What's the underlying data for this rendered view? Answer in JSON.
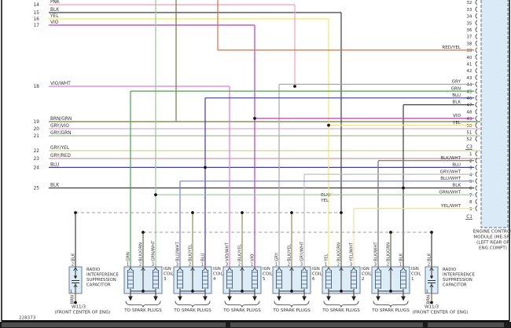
{
  "diagram_id": "228373",
  "colors": {
    "PNK": "#ef9ebf",
    "BLK": "#3c3c3c",
    "YEL": "#f0ea5e",
    "VIO": "#c238c2",
    "VIO_WHT": "#df77df",
    "BRN_GRN": "#6d7c3c",
    "GRY_VIO": "#dcaacc",
    "GRY_GRN": "#a9bf9b",
    "GRY_YEL": "#d2d296",
    "GRY_RED": "#d29c9c",
    "BLU": "#3c3ca5",
    "RED_YEL": "#d4733c",
    "GRY": "#ababab",
    "GRN": "#4aa34a",
    "GRN_WHT": "#93cb93",
    "BLU_WHT": "#7d7dcb",
    "BLK_WHT": "#707070",
    "BLK_GRN": "#5d6e4d",
    "BLK_YEL": "#8f8f50",
    "YEL_WHT": "#e6e69c",
    "BRN": "#8f5c2d",
    "GRY_WHT": "#c0c0c0",
    "bus": "#9c9c9c",
    "ecm_fill": "#daeaf7",
    "coil_fill": "#ddedf8",
    "box_border": "#5f6f8a",
    "text": "#333333"
  },
  "left_rows": [
    {
      "pin": "14",
      "label": "PNK"
    },
    {
      "pin": "15",
      "label": "BLK"
    },
    {
      "pin": "16",
      "label": "YEL"
    },
    {
      "pin": "17",
      "label": "VIO"
    },
    {
      "pin": "18",
      "label": "VIO/WHT"
    },
    {
      "pin": "19",
      "label": "BRN/GRN"
    },
    {
      "pin": "20",
      "label": "GRY/VIO"
    },
    {
      "pin": "21",
      "label": "GRY/GRN"
    },
    {
      "pin": "22",
      "label": "GRY/YEL"
    },
    {
      "pin": "23",
      "label": "GRY/RED"
    },
    {
      "pin": "24",
      "label": "BLU"
    },
    {
      "pin": "25",
      "label": "BLK"
    }
  ],
  "ecm": {
    "caption": [
      "ENGINE CONTROL",
      "MODULE (ME-SFI)",
      "(LEFT REAR OF",
      "ENG COMPT)"
    ],
    "upper_connector": "C3",
    "lower_connector": "C1",
    "upper_pins": [
      {
        "num": "32"
      },
      {
        "num": "33"
      },
      {
        "num": "34"
      },
      {
        "num": "35"
      },
      {
        "num": "36"
      },
      {
        "num": "37"
      },
      {
        "num": "38"
      },
      {
        "num": "39",
        "wire": "RED/YEL"
      },
      {
        "num": "40"
      },
      {
        "num": "41"
      },
      {
        "num": "42"
      },
      {
        "num": "43"
      },
      {
        "num": "44",
        "wire": "GRY"
      },
      {
        "num": "45",
        "wire": "GRN"
      },
      {
        "num": "46",
        "wire": "BLU"
      },
      {
        "num": "47",
        "wire": "BLK"
      },
      {
        "num": "48"
      },
      {
        "num": "49",
        "wire": "VIO"
      },
      {
        "num": "50",
        "wire": "YEL"
      },
      {
        "num": "51"
      },
      {
        "num": "52"
      }
    ],
    "lower_pins": [
      {
        "num": "1"
      },
      {
        "num": "2",
        "wire": "BLK/WHT"
      },
      {
        "num": "3",
        "wire": "BLU"
      },
      {
        "num": "4",
        "wire": "GRY/WHT"
      },
      {
        "num": "5",
        "wire": "BLU/WHT"
      },
      {
        "num": "6",
        "wire": "BLK"
      },
      {
        "num": "7",
        "wire": "GRN/WHT"
      },
      {
        "num": "8"
      },
      {
        "num": "9",
        "wire": "YEL/WHT"
      }
    ]
  },
  "coils": [
    {
      "label": [
        "IGN",
        "COIL",
        "3"
      ],
      "spark": "TO SPARK PLUGS",
      "terminals": [
        {
          "n": "1",
          "wire": "GRN"
        },
        {
          "n": "2",
          "wire": "BLK/GRN"
        },
        {
          "n": "3",
          "wire": "GRN/WHT"
        }
      ]
    },
    {
      "label": [
        "IGN",
        "COIL",
        "4"
      ],
      "spark": "TO SPARK PLUGS",
      "terminals": [
        {
          "n": "3",
          "wire": "BLU/WHT"
        },
        {
          "n": "2",
          "wire": "BLK/YEL"
        },
        {
          "n": "1",
          "wire": "BLU"
        }
      ]
    },
    {
      "label": [
        "IGN",
        "COIL",
        "5"
      ],
      "spark": "TO SPARK PLUGS",
      "terminals": [
        {
          "n": "3",
          "wire": "VIO/WHT"
        },
        {
          "n": "2",
          "wire": "BLK/YEL"
        },
        {
          "n": "1",
          "wire": "VIO"
        }
      ]
    },
    {
      "label": [
        "IGN",
        "COIL",
        "6"
      ],
      "spark": "TO SPARK PLUGS",
      "terminals": [
        {
          "n": "1",
          "wire": "GRY"
        },
        {
          "n": "2",
          "wire": "BLK/YEL"
        },
        {
          "n": "3",
          "wire": "GRY/WHT"
        }
      ]
    },
    {
      "label": [
        "IGN",
        "COIL",
        "2"
      ],
      "spark": "TO SPARK PLUGS",
      "terminals": [
        {
          "n": "1",
          "wire": "YEL"
        },
        {
          "n": "2",
          "wire": "BLK/GRN"
        },
        {
          "n": "3",
          "wire": "YEL/WHT"
        }
      ]
    },
    {
      "label": [
        "IGN",
        "COIL",
        "1"
      ],
      "spark": "TO SPARK PLUGS",
      "terminals": [
        {
          "n": "3",
          "wire": "BLK/WHT"
        },
        {
          "n": "2",
          "wire": "BLK/GRN"
        },
        {
          "n": "1",
          "wire": "BLK"
        }
      ]
    }
  ],
  "capacitors": [
    {
      "label": [
        "RADIO",
        "INTERFERENCE",
        "SUPPRESSION",
        "CAPACITOR"
      ],
      "top": {
        "n": "2",
        "wire": "BLK"
      },
      "bottom": {
        "n": "1",
        "wire": "BRN"
      },
      "ground": "W11/3",
      "ground_loc": "(FRONT CENTER OF ENG)"
    },
    {
      "label": [
        "RADIO",
        "INTERFERENCE",
        "SUPPRESSION",
        "CAPACITOR"
      ],
      "top": {
        "n": "2",
        "wire": "BLK"
      },
      "bottom": {
        "n": "1",
        "wire": "BRN"
      },
      "ground": "W11/3",
      "ground_loc": "(FRONT CENTER OF ENG)"
    }
  ],
  "bus_label": [
    "BLK/",
    "YEL"
  ]
}
